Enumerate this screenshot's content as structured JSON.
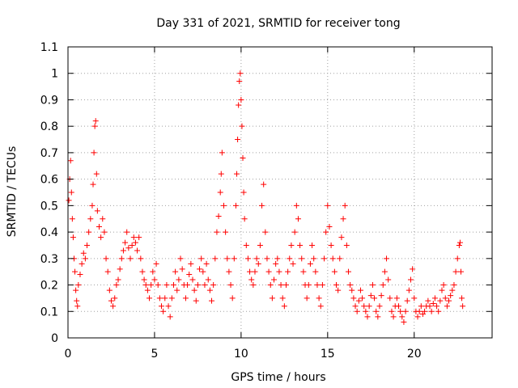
{
  "chart_data": {
    "type": "scatter",
    "title": "Day 331 of 2021, SRMTID for receiver tong",
    "xlabel": "GPS time / hours",
    "ylabel": "SRMTID / TECUs",
    "xlim": [
      0,
      24.5
    ],
    "ylim": [
      0,
      1.1
    ],
    "grid": true,
    "marker": "+",
    "color": "#ff0000",
    "x_ticks": [
      {
        "value": 0,
        "label": "0"
      },
      {
        "value": 5,
        "label": "5"
      },
      {
        "value": 10,
        "label": "10"
      },
      {
        "value": 15,
        "label": "15"
      },
      {
        "value": 20,
        "label": "20"
      }
    ],
    "y_ticks": [
      {
        "value": 0,
        "label": "0"
      },
      {
        "value": 0.1,
        "label": "0.1"
      },
      {
        "value": 0.2,
        "label": "0.2"
      },
      {
        "value": 0.3,
        "label": "0.3"
      },
      {
        "value": 0.4,
        "label": "0.4"
      },
      {
        "value": 0.5,
        "label": "0.5"
      },
      {
        "value": 0.6,
        "label": "0.6"
      },
      {
        "value": 0.7,
        "label": "0.7"
      },
      {
        "value": 0.8,
        "label": "0.8"
      },
      {
        "value": 0.9,
        "label": "0.9"
      },
      {
        "value": 1,
        "label": "1"
      },
      {
        "value": 1.1,
        "label": "1.1"
      }
    ],
    "series": [
      {
        "name": "SRMTID",
        "points": [
          [
            0.05,
            0.52
          ],
          [
            0.1,
            0.6
          ],
          [
            0.15,
            0.67
          ],
          [
            0.2,
            0.55
          ],
          [
            0.25,
            0.45
          ],
          [
            0.3,
            0.38
          ],
          [
            0.35,
            0.3
          ],
          [
            0.4,
            0.25
          ],
          [
            0.45,
            0.18
          ],
          [
            0.5,
            0.14
          ],
          [
            0.55,
            0.12
          ],
          [
            0.6,
            0.2
          ],
          [
            0.7,
            0.24
          ],
          [
            0.8,
            0.28
          ],
          [
            0.9,
            0.32
          ],
          [
            1.0,
            0.3
          ],
          [
            1.1,
            0.35
          ],
          [
            1.2,
            0.4
          ],
          [
            1.3,
            0.45
          ],
          [
            1.4,
            0.5
          ],
          [
            1.45,
            0.58
          ],
          [
            1.5,
            0.7
          ],
          [
            1.55,
            0.8
          ],
          [
            1.6,
            0.82
          ],
          [
            1.65,
            0.62
          ],
          [
            1.7,
            0.48
          ],
          [
            1.8,
            0.42
          ],
          [
            1.9,
            0.38
          ],
          [
            2.0,
            0.45
          ],
          [
            2.1,
            0.4
          ],
          [
            2.2,
            0.3
          ],
          [
            2.3,
            0.25
          ],
          [
            2.4,
            0.18
          ],
          [
            2.5,
            0.14
          ],
          [
            2.6,
            0.12
          ],
          [
            2.7,
            0.15
          ],
          [
            2.8,
            0.2
          ],
          [
            2.9,
            0.22
          ],
          [
            3.0,
            0.26
          ],
          [
            3.1,
            0.3
          ],
          [
            3.2,
            0.33
          ],
          [
            3.3,
            0.36
          ],
          [
            3.4,
            0.4
          ],
          [
            3.5,
            0.34
          ],
          [
            3.6,
            0.3
          ],
          [
            3.7,
            0.35
          ],
          [
            3.8,
            0.38
          ],
          [
            3.9,
            0.36
          ],
          [
            4.0,
            0.33
          ],
          [
            4.1,
            0.38
          ],
          [
            4.2,
            0.3
          ],
          [
            4.3,
            0.25
          ],
          [
            4.4,
            0.22
          ],
          [
            4.5,
            0.2
          ],
          [
            4.6,
            0.18
          ],
          [
            4.7,
            0.15
          ],
          [
            4.8,
            0.2
          ],
          [
            4.9,
            0.25
          ],
          [
            5.0,
            0.22
          ],
          [
            5.1,
            0.28
          ],
          [
            5.2,
            0.2
          ],
          [
            5.3,
            0.15
          ],
          [
            5.4,
            0.12
          ],
          [
            5.5,
            0.1
          ],
          [
            5.6,
            0.15
          ],
          [
            5.7,
            0.2
          ],
          [
            5.8,
            0.12
          ],
          [
            5.9,
            0.08
          ],
          [
            6.0,
            0.15
          ],
          [
            6.1,
            0.2
          ],
          [
            6.2,
            0.25
          ],
          [
            6.3,
            0.18
          ],
          [
            6.4,
            0.22
          ],
          [
            6.5,
            0.3
          ],
          [
            6.6,
            0.26
          ],
          [
            6.7,
            0.2
          ],
          [
            6.8,
            0.15
          ],
          [
            6.9,
            0.2
          ],
          [
            7.0,
            0.24
          ],
          [
            7.1,
            0.28
          ],
          [
            7.2,
            0.22
          ],
          [
            7.3,
            0.18
          ],
          [
            7.4,
            0.14
          ],
          [
            7.5,
            0.2
          ],
          [
            7.6,
            0.26
          ],
          [
            7.7,
            0.3
          ],
          [
            7.8,
            0.25
          ],
          [
            7.9,
            0.2
          ],
          [
            8.0,
            0.28
          ],
          [
            8.1,
            0.22
          ],
          [
            8.2,
            0.18
          ],
          [
            8.3,
            0.14
          ],
          [
            8.4,
            0.2
          ],
          [
            8.5,
            0.3
          ],
          [
            8.6,
            0.4
          ],
          [
            8.7,
            0.46
          ],
          [
            8.8,
            0.55
          ],
          [
            8.85,
            0.62
          ],
          [
            8.9,
            0.7
          ],
          [
            9.0,
            0.5
          ],
          [
            9.1,
            0.4
          ],
          [
            9.2,
            0.3
          ],
          [
            9.3,
            0.25
          ],
          [
            9.4,
            0.2
          ],
          [
            9.5,
            0.15
          ],
          [
            9.6,
            0.3
          ],
          [
            9.7,
            0.5
          ],
          [
            9.75,
            0.62
          ],
          [
            9.8,
            0.75
          ],
          [
            9.85,
            0.88
          ],
          [
            9.9,
            0.97
          ],
          [
            9.95,
            1.0
          ],
          [
            10.0,
            0.9
          ],
          [
            10.05,
            0.8
          ],
          [
            10.1,
            0.68
          ],
          [
            10.15,
            0.55
          ],
          [
            10.2,
            0.45
          ],
          [
            10.3,
            0.35
          ],
          [
            10.4,
            0.3
          ],
          [
            10.5,
            0.25
          ],
          [
            10.6,
            0.22
          ],
          [
            10.7,
            0.2
          ],
          [
            10.8,
            0.25
          ],
          [
            10.9,
            0.3
          ],
          [
            11.0,
            0.28
          ],
          [
            11.1,
            0.35
          ],
          [
            11.2,
            0.5
          ],
          [
            11.3,
            0.58
          ],
          [
            11.4,
            0.4
          ],
          [
            11.5,
            0.3
          ],
          [
            11.6,
            0.25
          ],
          [
            11.7,
            0.2
          ],
          [
            11.8,
            0.15
          ],
          [
            11.9,
            0.22
          ],
          [
            12.0,
            0.28
          ],
          [
            12.1,
            0.3
          ],
          [
            12.2,
            0.25
          ],
          [
            12.3,
            0.2
          ],
          [
            12.4,
            0.15
          ],
          [
            12.5,
            0.12
          ],
          [
            12.6,
            0.2
          ],
          [
            12.7,
            0.25
          ],
          [
            12.8,
            0.3
          ],
          [
            12.9,
            0.35
          ],
          [
            13.0,
            0.28
          ],
          [
            13.1,
            0.4
          ],
          [
            13.2,
            0.5
          ],
          [
            13.3,
            0.45
          ],
          [
            13.4,
            0.35
          ],
          [
            13.5,
            0.3
          ],
          [
            13.6,
            0.25
          ],
          [
            13.7,
            0.2
          ],
          [
            13.8,
            0.15
          ],
          [
            13.9,
            0.2
          ],
          [
            14.0,
            0.28
          ],
          [
            14.1,
            0.35
          ],
          [
            14.2,
            0.3
          ],
          [
            14.3,
            0.25
          ],
          [
            14.4,
            0.2
          ],
          [
            14.5,
            0.15
          ],
          [
            14.6,
            0.12
          ],
          [
            14.7,
            0.2
          ],
          [
            14.8,
            0.3
          ],
          [
            14.9,
            0.4
          ],
          [
            15.0,
            0.5
          ],
          [
            15.1,
            0.42
          ],
          [
            15.2,
            0.35
          ],
          [
            15.3,
            0.3
          ],
          [
            15.4,
            0.25
          ],
          [
            15.5,
            0.2
          ],
          [
            15.6,
            0.18
          ],
          [
            15.7,
            0.3
          ],
          [
            15.8,
            0.38
          ],
          [
            15.9,
            0.45
          ],
          [
            16.0,
            0.5
          ],
          [
            16.1,
            0.35
          ],
          [
            16.2,
            0.25
          ],
          [
            16.3,
            0.2
          ],
          [
            16.4,
            0.18
          ],
          [
            16.5,
            0.15
          ],
          [
            16.6,
            0.12
          ],
          [
            16.7,
            0.1
          ],
          [
            16.8,
            0.14
          ],
          [
            16.9,
            0.18
          ],
          [
            17.0,
            0.15
          ],
          [
            17.1,
            0.12
          ],
          [
            17.2,
            0.1
          ],
          [
            17.3,
            0.08
          ],
          [
            17.4,
            0.12
          ],
          [
            17.5,
            0.16
          ],
          [
            17.6,
            0.2
          ],
          [
            17.7,
            0.15
          ],
          [
            17.8,
            0.1
          ],
          [
            17.9,
            0.08
          ],
          [
            18.0,
            0.12
          ],
          [
            18.1,
            0.16
          ],
          [
            18.2,
            0.2
          ],
          [
            18.3,
            0.25
          ],
          [
            18.4,
            0.3
          ],
          [
            18.5,
            0.22
          ],
          [
            18.6,
            0.15
          ],
          [
            18.7,
            0.1
          ],
          [
            18.8,
            0.08
          ],
          [
            18.9,
            0.12
          ],
          [
            19.0,
            0.15
          ],
          [
            19.1,
            0.12
          ],
          [
            19.2,
            0.1
          ],
          [
            19.3,
            0.08
          ],
          [
            19.4,
            0.06
          ],
          [
            19.5,
            0.1
          ],
          [
            19.6,
            0.14
          ],
          [
            19.7,
            0.18
          ],
          [
            19.8,
            0.22
          ],
          [
            19.9,
            0.26
          ],
          [
            20.0,
            0.15
          ],
          [
            20.1,
            0.1
          ],
          [
            20.2,
            0.08
          ],
          [
            20.3,
            0.1
          ],
          [
            20.4,
            0.12
          ],
          [
            20.5,
            0.09
          ],
          [
            20.6,
            0.1
          ],
          [
            20.7,
            0.12
          ],
          [
            20.8,
            0.14
          ],
          [
            20.9,
            0.12
          ],
          [
            21.0,
            0.1
          ],
          [
            21.1,
            0.13
          ],
          [
            21.2,
            0.15
          ],
          [
            21.3,
            0.12
          ],
          [
            21.4,
            0.1
          ],
          [
            21.5,
            0.14
          ],
          [
            21.6,
            0.18
          ],
          [
            21.7,
            0.2
          ],
          [
            21.8,
            0.15
          ],
          [
            21.9,
            0.12
          ],
          [
            22.0,
            0.14
          ],
          [
            22.1,
            0.16
          ],
          [
            22.2,
            0.18
          ],
          [
            22.3,
            0.2
          ],
          [
            22.4,
            0.25
          ],
          [
            22.5,
            0.3
          ],
          [
            22.6,
            0.35
          ],
          [
            22.65,
            0.36
          ],
          [
            22.7,
            0.25
          ],
          [
            22.75,
            0.15
          ],
          [
            22.8,
            0.12
          ]
        ]
      }
    ]
  }
}
